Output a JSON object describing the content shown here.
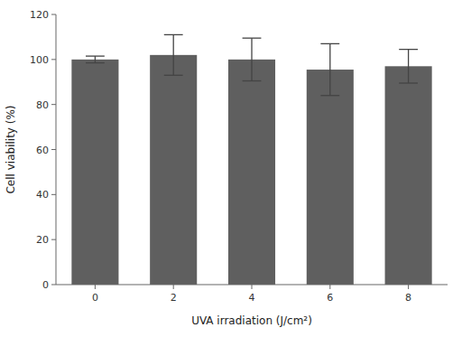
{
  "chart_data": {
    "type": "bar",
    "categories": [
      "0",
      "2",
      "4",
      "6",
      "8"
    ],
    "values": [
      100.0,
      102.0,
      100.0,
      95.5,
      97.0
    ],
    "errors": [
      1.5,
      9.0,
      9.5,
      11.5,
      7.5
    ],
    "color": "#5f5f5f",
    "xlabel": "UVA irradiation  (J/cm²)",
    "ylabel": "Cell viability  (%)",
    "ylim": [
      0,
      120
    ],
    "yticks": [
      0,
      20,
      40,
      60,
      80,
      100,
      120
    ],
    "grid": false
  }
}
